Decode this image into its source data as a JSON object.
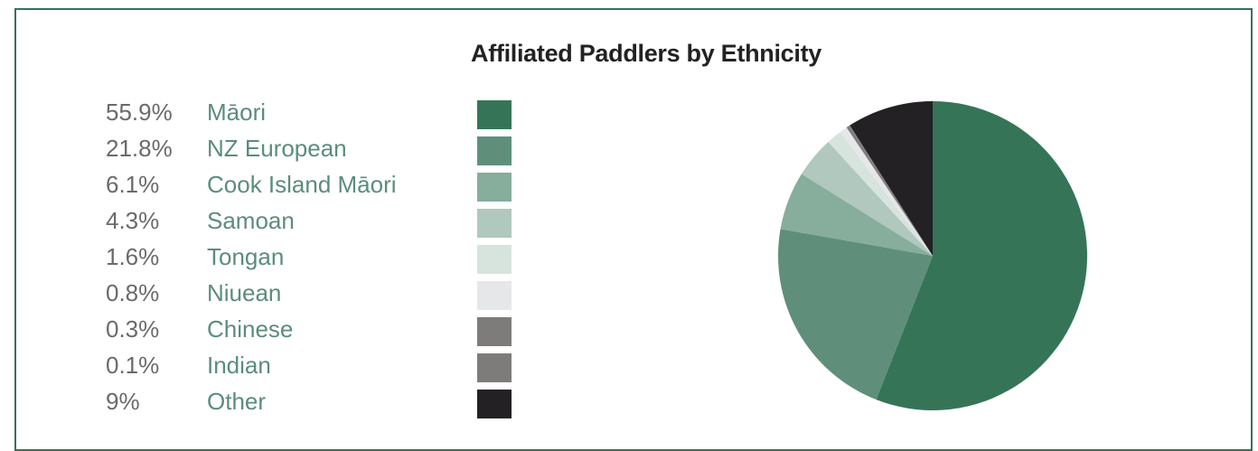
{
  "chart_data": {
    "type": "pie",
    "title": "Affiliated Paddlers by Ethnicity",
    "legend_position": "left",
    "slices": [
      {
        "label": "Māori",
        "pct_label": "55.9%",
        "value": 55.9,
        "color": "#367458"
      },
      {
        "label": "NZ European",
        "pct_label": "21.8%",
        "value": 21.8,
        "color": "#5f8f7b"
      },
      {
        "label": "Cook Island Māori",
        "pct_label": "6.1%",
        "value": 6.1,
        "color": "#87ad9c"
      },
      {
        "label": "Samoan",
        "pct_label": "4.3%",
        "value": 4.3,
        "color": "#b0c8be"
      },
      {
        "label": "Tongan",
        "pct_label": "1.6%",
        "value": 1.6,
        "color": "#d7e4de"
      },
      {
        "label": "Niuean",
        "pct_label": "0.8%",
        "value": 0.8,
        "color": "#e6e7e9"
      },
      {
        "label": "Chinese",
        "pct_label": "0.3%",
        "value": 0.3,
        "color": "#7d7c7b"
      },
      {
        "label": "Indian",
        "pct_label": "0.1%",
        "value": 0.1,
        "color": "#7d7c7b"
      },
      {
        "label": "Other",
        "pct_label": "9%",
        "value": 9,
        "color": "#232123"
      }
    ]
  }
}
